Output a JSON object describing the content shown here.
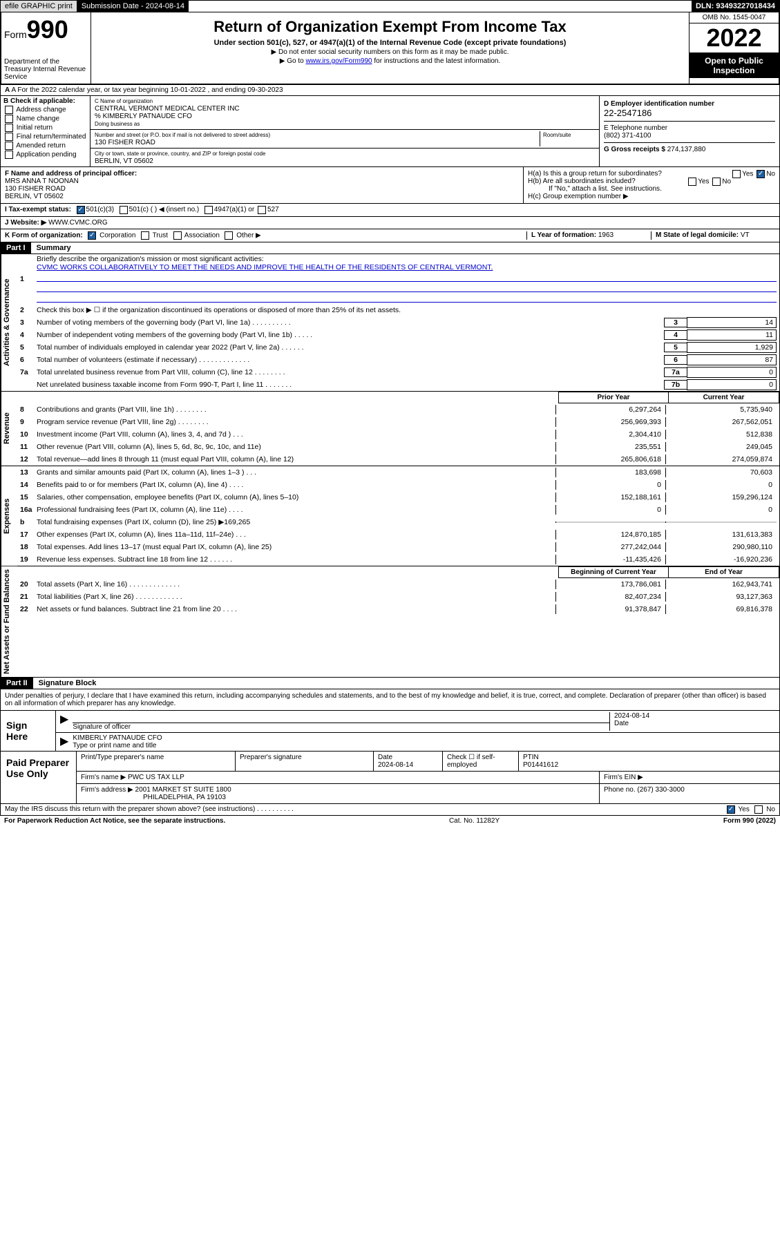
{
  "header": {
    "efile": "efile GRAPHIC print",
    "submission_date_label": "Submission Date - 2024-08-14",
    "dln": "DLN: 93493227018434"
  },
  "topbox": {
    "form_label": "Form",
    "form_num": "990",
    "dept": "Department of the Treasury Internal Revenue Service",
    "title": "Return of Organization Exempt From Income Tax",
    "subtitle": "Under section 501(c), 527, or 4947(a)(1) of the Internal Revenue Code (except private foundations)",
    "note1": "▶ Do not enter social security numbers on this form as it may be made public.",
    "note2_pre": "▶ Go to ",
    "note2_link": "www.irs.gov/Form990",
    "note2_post": " for instructions and the latest information.",
    "omb": "OMB No. 1545-0047",
    "year": "2022",
    "open_public": "Open to Public Inspection"
  },
  "row_a": "A For the 2022 calendar year, or tax year beginning 10-01-2022    , and ending 09-30-2023",
  "section_b": {
    "label": "B Check if applicable:",
    "opts": [
      "Address change",
      "Name change",
      "Initial return",
      "Final return/terminated",
      "Amended return",
      "Application pending"
    ]
  },
  "section_c": {
    "name_label": "C Name of organization",
    "name": "CENTRAL VERMONT MEDICAL CENTER INC",
    "care_of": "% KIMBERLY PATNAUDE CFO",
    "dba_label": "Doing business as",
    "addr_label": "Number and street (or P.O. box if mail is not delivered to street address)",
    "room_label": "Room/suite",
    "addr": "130 FISHER ROAD",
    "city_label": "City or town, state or province, country, and ZIP or foreign postal code",
    "city": "BERLIN, VT  05602"
  },
  "section_d": {
    "ein_label": "D Employer identification number",
    "ein": "22-2547186",
    "phone_label": "E Telephone number",
    "phone": "(802) 371-4100",
    "gross_label": "G Gross receipts $",
    "gross": "274,137,880"
  },
  "section_f": {
    "label": "F Name and address of principal officer:",
    "name": "MRS ANNA T NOONAN",
    "addr1": "130 FISHER ROAD",
    "addr2": "BERLIN, VT  05602"
  },
  "section_h": {
    "ha": "H(a)  Is this a group return for subordinates?",
    "hb": "H(b)  Are all subordinates included?",
    "hb_note": "If \"No,\" attach a list. See instructions.",
    "hc": "H(c)  Group exemption number ▶",
    "yes": "Yes",
    "no": "No"
  },
  "row_i": {
    "label": "I   Tax-exempt status:",
    "opt1": "501(c)(3)",
    "opt2": "501(c) (  ) ◀ (insert no.)",
    "opt3": "4947(a)(1) or",
    "opt4": "527"
  },
  "row_j": {
    "label": "J   Website: ▶",
    "val": "WWW.CVMC.ORG"
  },
  "row_k": {
    "label": "K Form of organization:",
    "opts": [
      "Corporation",
      "Trust",
      "Association",
      "Other ▶"
    ],
    "l_label": "L Year of formation:",
    "l_val": "1963",
    "m_label": "M State of legal domicile:",
    "m_val": "VT"
  },
  "part1": {
    "hdr": "Part I",
    "title": "Summary",
    "sections": [
      {
        "side": "Activities & Governance",
        "lines": [
          {
            "n": "1",
            "desc": "Briefly describe the organization's mission or most significant activities:",
            "mission": "CVMC WORKS COLLABORATIVELY TO MEET THE NEEDS AND IMPROVE THE HEALTH OF THE RESIDENTS OF CENTRAL VERMONT."
          },
          {
            "n": "2",
            "desc": "Check this box ▶ ☐  if the organization discontinued its operations or disposed of more than 25% of its net assets."
          },
          {
            "n": "3",
            "desc": "Number of voting members of the governing body (Part VI, line 1a)  .  .  .  .  .  .  .  .  .  .",
            "box": "3",
            "val": "14"
          },
          {
            "n": "4",
            "desc": "Number of independent voting members of the governing body (Part VI, line 1b)  .  .  .  .  .",
            "box": "4",
            "val": "11"
          },
          {
            "n": "5",
            "desc": "Total number of individuals employed in calendar year 2022 (Part V, line 2a)  .  .  .  .  .  .",
            "box": "5",
            "val": "1,929"
          },
          {
            "n": "6",
            "desc": "Total number of volunteers (estimate if necessary)  .  .  .  .  .  .  .  .  .  .  .  .  .",
            "box": "6",
            "val": "87"
          },
          {
            "n": "7a",
            "desc": "Total unrelated business revenue from Part VIII, column (C), line 12  .  .  .  .  .  .  .  .",
            "box": "7a",
            "val": "0"
          },
          {
            "n": "",
            "desc": "Net unrelated business taxable income from Form 990-T, Part I, line 11  .  .  .  .  .  .  .",
            "box": "7b",
            "val": "0"
          }
        ]
      },
      {
        "side": "Revenue",
        "col_hdr": {
          "prior": "Prior Year",
          "curr": "Current Year"
        },
        "lines": [
          {
            "n": "8",
            "desc": "Contributions and grants (Part VIII, line 1h)  .  .  .  .  .  .  .  .",
            "prior": "6,297,264",
            "curr": "5,735,940"
          },
          {
            "n": "9",
            "desc": "Program service revenue (Part VIII, line 2g)  .  .  .  .  .  .  .  .",
            "prior": "256,969,393",
            "curr": "267,562,051"
          },
          {
            "n": "10",
            "desc": "Investment income (Part VIII, column (A), lines 3, 4, and 7d )  .  .  .",
            "prior": "2,304,410",
            "curr": "512,838"
          },
          {
            "n": "11",
            "desc": "Other revenue (Part VIII, column (A), lines 5, 6d, 8c, 9c, 10c, and 11e)",
            "prior": "235,551",
            "curr": "249,045"
          },
          {
            "n": "12",
            "desc": "Total revenue—add lines 8 through 11 (must equal Part VIII, column (A), line 12)",
            "prior": "265,806,618",
            "curr": "274,059,874"
          }
        ]
      },
      {
        "side": "Expenses",
        "lines": [
          {
            "n": "13",
            "desc": "Grants and similar amounts paid (Part IX, column (A), lines 1–3 )  .  .  .",
            "prior": "183,698",
            "curr": "70,603"
          },
          {
            "n": "14",
            "desc": "Benefits paid to or for members (Part IX, column (A), line 4)  .  .  .  .",
            "prior": "0",
            "curr": "0"
          },
          {
            "n": "15",
            "desc": "Salaries, other compensation, employee benefits (Part IX, column (A), lines 5–10)",
            "prior": "152,188,161",
            "curr": "159,296,124"
          },
          {
            "n": "16a",
            "desc": "Professional fundraising fees (Part IX, column (A), line 11e)  .  .  .  .",
            "prior": "0",
            "curr": "0"
          },
          {
            "n": "b",
            "desc": "Total fundraising expenses (Part IX, column (D), line 25) ▶169,265",
            "prior": "",
            "curr": "",
            "gray": true
          },
          {
            "n": "17",
            "desc": "Other expenses (Part IX, column (A), lines 11a–11d, 11f–24e)  .  .  .",
            "prior": "124,870,185",
            "curr": "131,613,383"
          },
          {
            "n": "18",
            "desc": "Total expenses. Add lines 13–17 (must equal Part IX, column (A), line 25)",
            "prior": "277,242,044",
            "curr": "290,980,110"
          },
          {
            "n": "19",
            "desc": "Revenue less expenses. Subtract line 18 from line 12  .  .  .  .  .  .",
            "prior": "-11,435,426",
            "curr": "-16,920,236"
          }
        ]
      },
      {
        "side": "Net Assets or Fund Balances",
        "col_hdr": {
          "prior": "Beginning of Current Year",
          "curr": "End of Year"
        },
        "lines": [
          {
            "n": "20",
            "desc": "Total assets (Part X, line 16)  .  .  .  .  .  .  .  .  .  .  .  .  .",
            "prior": "173,786,081",
            "curr": "162,943,741"
          },
          {
            "n": "21",
            "desc": "Total liabilities (Part X, line 26)  .  .  .  .  .  .  .  .  .  .  .  .",
            "prior": "82,407,234",
            "curr": "93,127,363"
          },
          {
            "n": "22",
            "desc": "Net assets or fund balances. Subtract line 21 from line 20  .  .  .  .",
            "prior": "91,378,847",
            "curr": "69,816,378"
          }
        ]
      }
    ]
  },
  "part2": {
    "hdr": "Part II",
    "title": "Signature Block",
    "decl": "Under penalties of perjury, I declare that I have examined this return, including accompanying schedules and statements, and to the best of my knowledge and belief, it is true, correct, and complete. Declaration of preparer (other than officer) is based on all information of which preparer has any knowledge."
  },
  "sign": {
    "left": "Sign Here",
    "sig_label": "Signature of officer",
    "date_label": "Date",
    "date": "2024-08-14",
    "name": "KIMBERLY PATNAUDE CFO",
    "name_label": "Type or print name and title"
  },
  "prep": {
    "left": "Paid Preparer Use Only",
    "r1": {
      "c1_label": "Print/Type preparer's name",
      "c2_label": "Preparer's signature",
      "c3_label": "Date",
      "c3": "2024-08-14",
      "c4_label": "Check ☐ if self-employed",
      "c5_label": "PTIN",
      "c5": "P01441612"
    },
    "r2": {
      "label": "Firm's name    ▶",
      "val": "PWC US TAX LLP",
      "ein_label": "Firm's EIN ▶"
    },
    "r3": {
      "label": "Firm's address ▶",
      "val1": "2001 MARKET ST SUITE 1800",
      "val2": "PHILADELPHIA, PA  19103",
      "phone_label": "Phone no.",
      "phone": "(267) 330-3000"
    }
  },
  "bottom": {
    "q": "May the IRS discuss this return with the preparer shown above? (see instructions)  .  .  .  .  .  .  .  .  .  .",
    "yes": "Yes",
    "no": "No"
  },
  "footer": {
    "left": "For Paperwork Reduction Act Notice, see the separate instructions.",
    "mid": "Cat. No. 11282Y",
    "right": "Form 990 (2022)"
  }
}
